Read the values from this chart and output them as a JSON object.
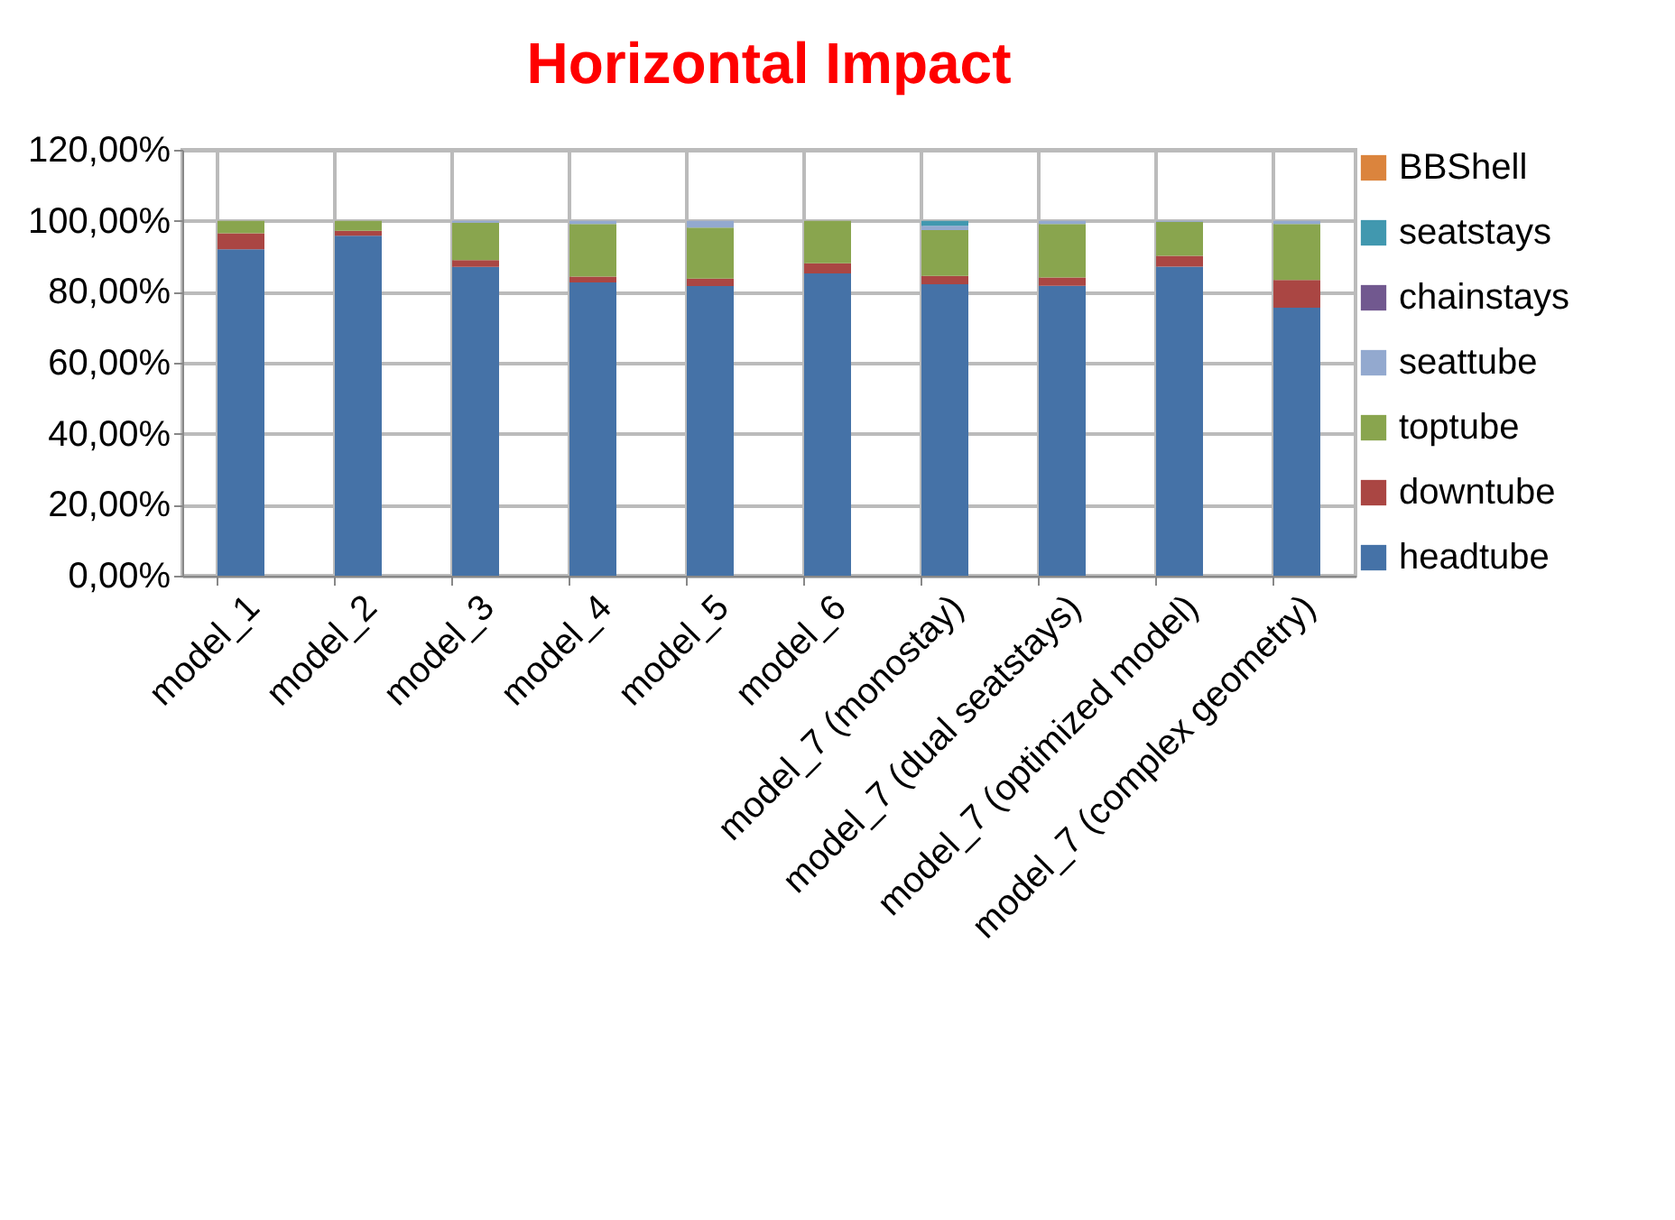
{
  "chart_data": {
    "type": "bar",
    "title": "Horizontal Impact",
    "stacked": true,
    "categories": [
      "model_1",
      "model_2",
      "model_3",
      "model_4",
      "model_5",
      "model_6",
      "model_7 (monostay)",
      "model_7 (dual seatstays)",
      "model_7 (optimized model)",
      "model_7 (complex geometry)"
    ],
    "series": [
      {
        "name": "headtube",
        "color": "#4572a7",
        "values": [
          92,
          95.8,
          87,
          82.6,
          81.6,
          85.2,
          82.1,
          81.7,
          87.1,
          75.5
        ]
      },
      {
        "name": "downtube",
        "color": "#aa4643",
        "values": [
          4.5,
          1.4,
          1.9,
          1.7,
          2.1,
          2.8,
          2.4,
          2.3,
          3.0,
          7.8
        ]
      },
      {
        "name": "toptube",
        "color": "#89a54e",
        "values": [
          3.5,
          2.8,
          10.6,
          14.8,
          14.4,
          12,
          12.9,
          15.1,
          9.6,
          15.8
        ]
      },
      {
        "name": "seattube",
        "color": "#93a9cf",
        "values": [
          0,
          0,
          0.5,
          0.9,
          1.9,
          0,
          1.2,
          0.9,
          0.3,
          0.9
        ]
      },
      {
        "name": "chainstays",
        "color": "#71588f",
        "values": [
          0,
          0,
          0,
          0,
          0,
          0,
          0,
          0,
          0,
          0
        ]
      },
      {
        "name": "seatstays",
        "color": "#4198af",
        "values": [
          0,
          0,
          0,
          0,
          0,
          0,
          1.4,
          0,
          0,
          0
        ]
      },
      {
        "name": "BBShell",
        "color": "#db843d",
        "values": [
          0,
          0,
          0,
          0,
          0,
          0,
          0,
          0,
          0,
          0
        ]
      }
    ],
    "ylim": [
      0,
      120
    ],
    "yticks": [
      {
        "value": 0,
        "label": "0,00%"
      },
      {
        "value": 20,
        "label": "20,00%"
      },
      {
        "value": 40,
        "label": "40,00%"
      },
      {
        "value": 60,
        "label": "60,00%"
      },
      {
        "value": 80,
        "label": "80,00%"
      },
      {
        "value": 100,
        "label": "100,00%"
      },
      {
        "value": 120,
        "label": "120,00%"
      }
    ],
    "grid": true,
    "legend": "right"
  }
}
